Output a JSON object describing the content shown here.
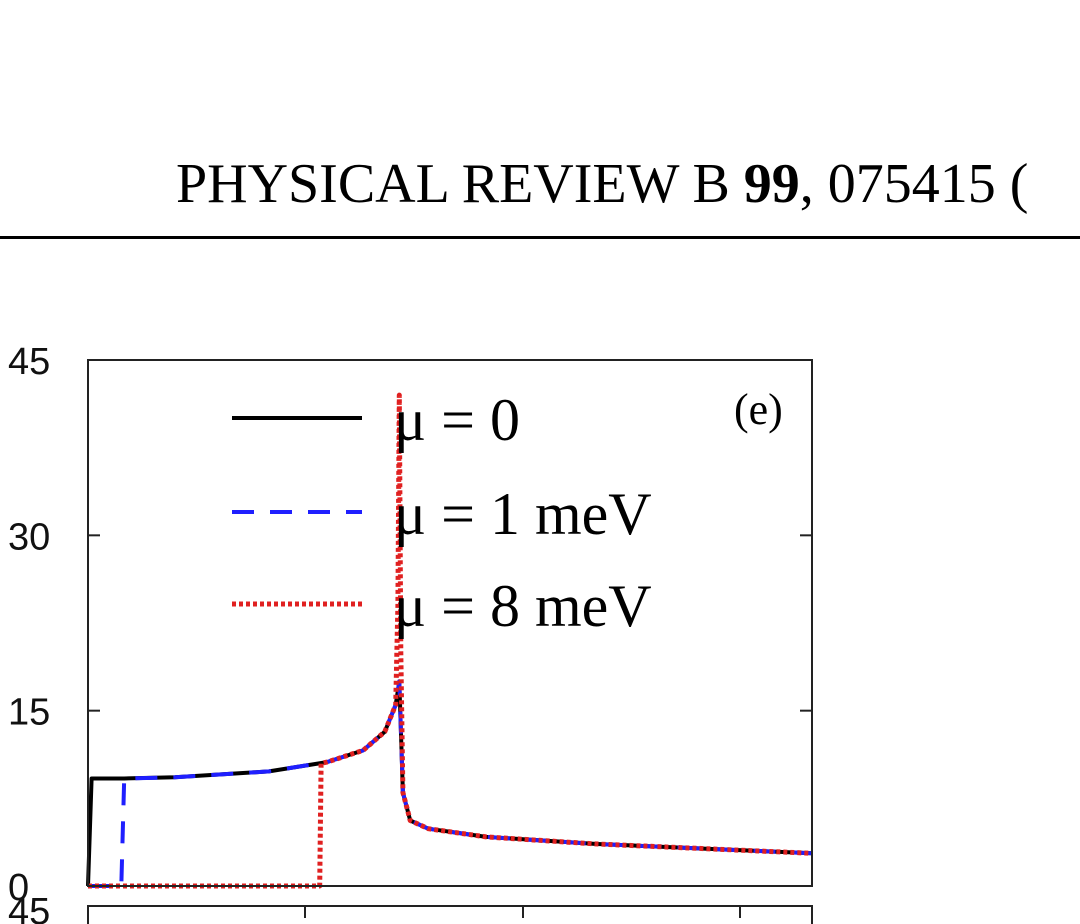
{
  "header": {
    "journal": "PHYSICAL REVIEW B",
    "volume": "99",
    "article": "075415 ("
  },
  "panel_label": "(e)",
  "next_panel_tick": "45",
  "chart_data": {
    "type": "line",
    "title": "",
    "xlabel": "",
    "ylabel": "",
    "ylim": [
      0,
      45
    ],
    "yticks": [
      "0",
      "15",
      "30",
      "45"
    ],
    "legend_position": "top-left",
    "series": [
      {
        "name": "μ = 0",
        "style": "solid",
        "color": "#000000",
        "x": [
          0.0,
          0.005,
          0.05,
          0.12,
          0.25,
          0.33,
          0.38,
          0.41,
          0.425,
          0.43,
          0.435,
          0.445,
          0.47,
          0.55,
          0.7,
          0.85,
          1.0
        ],
        "y": [
          0,
          9.2,
          9.2,
          9.3,
          9.8,
          10.6,
          11.6,
          13.2,
          15.5,
          17.5,
          8.0,
          5.6,
          4.9,
          4.2,
          3.6,
          3.2,
          2.8
        ]
      },
      {
        "name": "μ = 1 meV",
        "style": "dashed",
        "color": "#1f1fff",
        "x": [
          0.0,
          0.046,
          0.05,
          0.12,
          0.25,
          0.33,
          0.38,
          0.41,
          0.425,
          0.43,
          0.435,
          0.445,
          0.47,
          0.55,
          0.7,
          0.85,
          1.0
        ],
        "y": [
          0,
          0,
          9.2,
          9.3,
          9.8,
          10.6,
          11.6,
          13.2,
          15.5,
          17.5,
          8.0,
          5.6,
          4.9,
          4.2,
          3.6,
          3.2,
          2.8
        ]
      },
      {
        "name": "μ = 8 meV",
        "style": "dotted",
        "color": "#e02020",
        "x": [
          0.0,
          0.32,
          0.322,
          0.33,
          0.38,
          0.41,
          0.425,
          0.428,
          0.43,
          0.432,
          0.435,
          0.445,
          0.47,
          0.55,
          0.7,
          0.85,
          1.0
        ],
        "y": [
          0,
          0,
          10.5,
          10.6,
          11.6,
          13.2,
          15.5,
          24.0,
          42.0,
          20.0,
          8.0,
          5.6,
          4.9,
          4.2,
          3.6,
          3.2,
          2.8
        ]
      }
    ]
  }
}
